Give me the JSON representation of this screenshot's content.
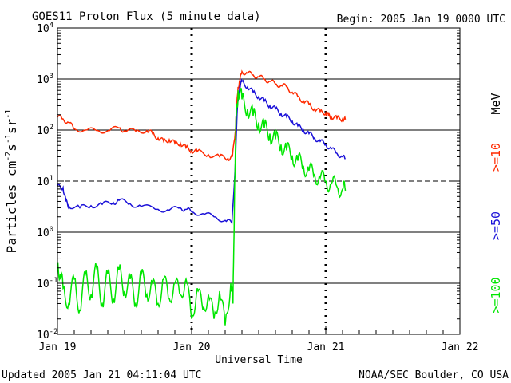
{
  "header": {
    "title": "GOES11 Proton Flux (5 minute data)",
    "begin": "Begin: 2005 Jan 19 0000 UTC"
  },
  "footer": {
    "updated": "Updated 2005 Jan 21 04:11:04 UTC",
    "credit": "NOAA/SEC Boulder, CO USA"
  },
  "chart_data": {
    "type": "line",
    "title": "GOES11 Proton Flux (5 minute data)",
    "xlabel": "Universal Time",
    "ylabel_parts": [
      "Particles cm",
      "-2",
      "s",
      "-1",
      "sr",
      "-1"
    ],
    "x_unit": "hours since 2005 Jan 19 0000 UTC",
    "xlim": [
      0,
      72
    ],
    "x_ticks": [
      {
        "x": 0,
        "label": "Jan 19"
      },
      {
        "x": 24,
        "label": "Jan 20"
      },
      {
        "x": 48,
        "label": "Jan 21"
      },
      {
        "x": 72,
        "label": "Jan 22"
      }
    ],
    "y_scale": "log",
    "ylim": [
      0.01,
      10000
    ],
    "y_ticks": [
      {
        "value": 0.01,
        "base": "10",
        "exp": "-2"
      },
      {
        "value": 0.1,
        "base": "10",
        "exp": "-1"
      },
      {
        "value": 1,
        "base": "10",
        "exp": "0"
      },
      {
        "value": 10,
        "base": "10",
        "exp": "1"
      },
      {
        "value": 100,
        "base": "10",
        "exp": "2"
      },
      {
        "value": 1000,
        "base": "10",
        "exp": "3"
      },
      {
        "value": 10000,
        "base": "10",
        "exp": "4"
      }
    ],
    "solid_gridlines": [
      1000,
      100,
      1,
      0.1
    ],
    "dashed_gridlines": [
      10
    ],
    "unit_label": "MeV",
    "series": [
      {
        "name": ">=10",
        "color": "#ff2a00",
        "points": [
          [
            0.0,
            180
          ],
          [
            1.0,
            165
          ],
          [
            2.0,
            140
          ],
          [
            3.0,
            105
          ],
          [
            5.0,
            100
          ],
          [
            7.0,
            98
          ],
          [
            9.0,
            97
          ],
          [
            11.0,
            110
          ],
          [
            12.0,
            98
          ],
          [
            14.0,
            95
          ],
          [
            16.0,
            98
          ],
          [
            17.0,
            85
          ],
          [
            18.0,
            70
          ],
          [
            19.0,
            60
          ],
          [
            20.0,
            65
          ],
          [
            21.0,
            55
          ],
          [
            22.0,
            55
          ],
          [
            23.0,
            45
          ],
          [
            24.0,
            40
          ],
          [
            25.0,
            38
          ],
          [
            27.0,
            33
          ],
          [
            29.0,
            30
          ],
          [
            30.5,
            28
          ],
          [
            31.3,
            30
          ],
          [
            31.8,
            90
          ],
          [
            32.0,
            220
          ],
          [
            32.3,
            700
          ],
          [
            32.6,
            900
          ],
          [
            33.0,
            1400
          ],
          [
            34.0,
            1300
          ],
          [
            35.0,
            1200
          ],
          [
            36.0,
            1100
          ],
          [
            37.0,
            1000
          ],
          [
            38.0,
            900
          ],
          [
            39.0,
            800
          ],
          [
            40.0,
            750
          ],
          [
            41.0,
            700
          ],
          [
            42.0,
            550
          ],
          [
            43.0,
            450
          ],
          [
            44.0,
            370
          ],
          [
            45.0,
            320
          ],
          [
            46.0,
            260
          ],
          [
            47.0,
            230
          ],
          [
            48.0,
            220
          ],
          [
            48.5,
            190
          ],
          [
            49.0,
            180
          ],
          [
            50.0,
            170
          ],
          [
            51.0,
            165
          ],
          [
            51.5,
            160
          ]
        ]
      },
      {
        "name": ">=50",
        "color": "#1a10d8",
        "points": [
          [
            0.0,
            8
          ],
          [
            1.0,
            7.5
          ],
          [
            1.5,
            4
          ],
          [
            2.0,
            3.3
          ],
          [
            4.0,
            3.0
          ],
          [
            6.0,
            3.3
          ],
          [
            8.0,
            3.5
          ],
          [
            10.0,
            3.8
          ],
          [
            11.0,
            4.2
          ],
          [
            13.0,
            3.6
          ],
          [
            15.0,
            3.2
          ],
          [
            18.0,
            2.8
          ],
          [
            20.0,
            2.7
          ],
          [
            22.0,
            3.0
          ],
          [
            23.0,
            2.8
          ],
          [
            24.0,
            2.5
          ],
          [
            26.0,
            2.3
          ],
          [
            28.0,
            2.0
          ],
          [
            30.0,
            1.7
          ],
          [
            31.2,
            1.5
          ],
          [
            31.8,
            20
          ],
          [
            32.2,
            300
          ],
          [
            32.6,
            700
          ],
          [
            33.0,
            900
          ],
          [
            34.0,
            700
          ],
          [
            35.0,
            550
          ],
          [
            36.0,
            450
          ],
          [
            37.0,
            370
          ],
          [
            38.0,
            300
          ],
          [
            39.0,
            260
          ],
          [
            40.0,
            210
          ],
          [
            41.0,
            180
          ],
          [
            42.0,
            150
          ],
          [
            43.0,
            120
          ],
          [
            44.0,
            100
          ],
          [
            45.0,
            85
          ],
          [
            46.0,
            70
          ],
          [
            47.0,
            60
          ],
          [
            48.0,
            52
          ],
          [
            49.0,
            43
          ],
          [
            50.0,
            35
          ],
          [
            51.0,
            30
          ],
          [
            51.5,
            27
          ]
        ]
      },
      {
        "name": ">=100",
        "color": "#00e600",
        "points": [
          [
            0.0,
            0.25
          ],
          [
            0.5,
            0.15
          ],
          [
            1.0,
            0.08
          ],
          [
            2.0,
            0.04
          ],
          [
            3.0,
            0.12
          ],
          [
            4.0,
            0.03
          ],
          [
            5.0,
            0.15
          ],
          [
            6.0,
            0.06
          ],
          [
            7.0,
            0.2
          ],
          [
            8.0,
            0.04
          ],
          [
            9.0,
            0.15
          ],
          [
            10.0,
            0.05
          ],
          [
            11.0,
            0.18
          ],
          [
            12.0,
            0.07
          ],
          [
            13.0,
            0.12
          ],
          [
            14.0,
            0.04
          ],
          [
            15.0,
            0.15
          ],
          [
            16.0,
            0.06
          ],
          [
            17.0,
            0.1
          ],
          [
            18.0,
            0.04
          ],
          [
            19.0,
            0.12
          ],
          [
            20.0,
            0.05
          ],
          [
            21.0,
            0.1
          ],
          [
            22.0,
            0.06
          ],
          [
            23.0,
            0.12
          ],
          [
            24.0,
            0.02
          ],
          [
            25.0,
            0.08
          ],
          [
            26.0,
            0.03
          ],
          [
            27.0,
            0.06
          ],
          [
            28.0,
            0.02
          ],
          [
            29.0,
            0.07
          ],
          [
            30.0,
            0.015
          ],
          [
            31.0,
            0.1
          ],
          [
            31.4,
            0.04
          ],
          [
            31.7,
            10
          ],
          [
            32.0,
            200
          ],
          [
            32.3,
            600
          ],
          [
            33.0,
            400
          ],
          [
            34.0,
            260
          ],
          [
            35.0,
            190
          ],
          [
            36.0,
            140
          ],
          [
            37.0,
            110
          ],
          [
            38.0,
            85
          ],
          [
            39.0,
            66
          ],
          [
            40.0,
            52
          ],
          [
            41.0,
            40
          ],
          [
            42.0,
            32
          ],
          [
            43.0,
            25
          ],
          [
            44.0,
            20
          ],
          [
            45.0,
            16
          ],
          [
            46.0,
            13.5
          ],
          [
            47.0,
            11.5
          ],
          [
            48.0,
            10
          ],
          [
            49.0,
            8.8
          ],
          [
            50.0,
            7.8
          ],
          [
            51.0,
            7.0
          ],
          [
            51.5,
            6.5
          ]
        ]
      }
    ]
  }
}
